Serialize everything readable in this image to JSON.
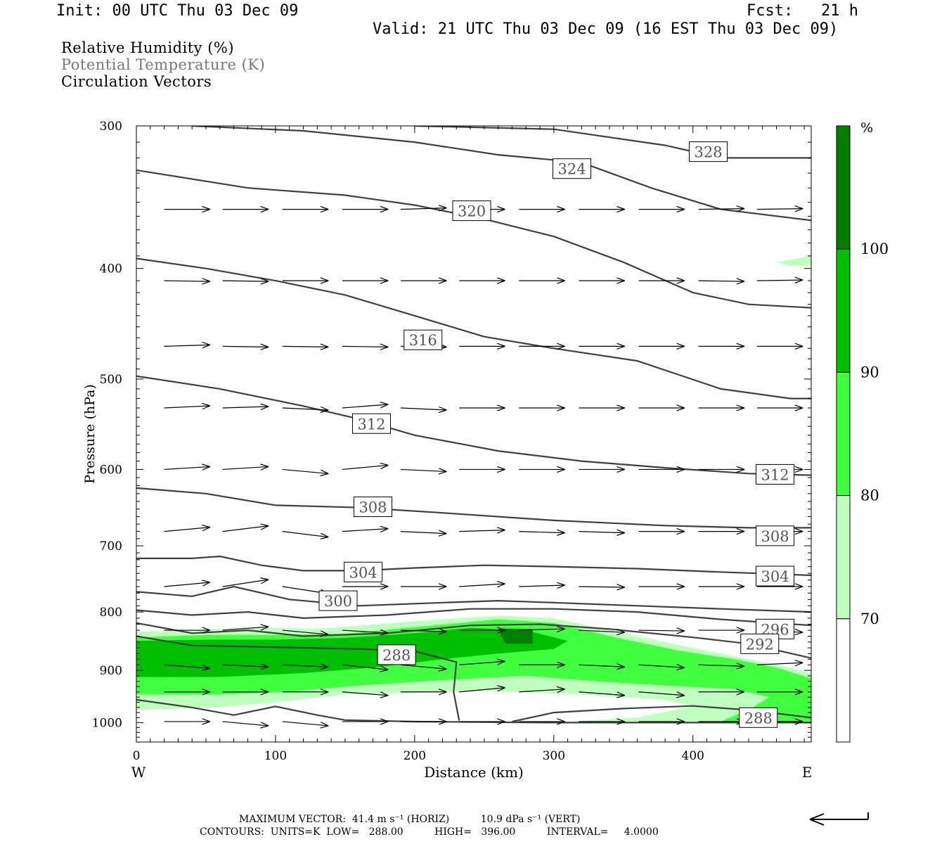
{
  "header": {
    "init": "Init: 00 UTC Thu 03 Dec 09",
    "fcst": "Fcst:   21 h",
    "valid": "Valid: 21 UTC Thu 03 Dec 09 (16 EST Thu 03 Dec 09)"
  },
  "legend": {
    "rh": "Relative Humidity (%)",
    "theta": "Potential Temperature (K)",
    "vectors": "Circulation Vectors"
  },
  "footer": {
    "max_vector": "MAXIMUM VECTOR:  41.4 m s⁻¹ (HORIZ)          10.9 dPa s⁻¹ (VERT)",
    "contours": "CONTOURS:  UNITS=K  LOW=   288.00          HIGH=   396.00          INTERVAL=     4.0000"
  },
  "colors": {
    "rh_70_80": "#bfffbf",
    "rh_80_90": "#3fff3f",
    "rh_90_100": "#00bf00",
    "rh_100": "#007f00",
    "contour": "#404040"
  },
  "chart_data": {
    "type": "cross-section",
    "xlabel": "Distance (km)",
    "ylabel": "Pressure (hPa)",
    "xlim": [
      0,
      485
    ],
    "ylim": [
      1040,
      300
    ],
    "y_scale": "log",
    "x_ticks": [
      0,
      100,
      200,
      300,
      400
    ],
    "x_tick_labels": [
      "0",
      "100",
      "200",
      "300",
      "400"
    ],
    "y_ticks": [
      300,
      400,
      500,
      600,
      700,
      800,
      900,
      1000
    ],
    "y_tick_labels": [
      "300",
      "400",
      "500",
      "600",
      "700",
      "800",
      "900",
      "1000"
    ],
    "side_left": "W",
    "side_right": "E",
    "colorbar": {
      "unit": "%",
      "labels": [
        "100",
        "90",
        "80",
        "70"
      ],
      "bins": [
        [
          70,
          80
        ],
        [
          80,
          90
        ],
        [
          90,
          100
        ],
        [
          100,
          110
        ]
      ]
    },
    "rh_fill_70": [
      [
        0,
        832
      ],
      [
        40,
        830
      ],
      [
        80,
        825
      ],
      [
        130,
        828
      ],
      [
        200,
        815
      ],
      [
        260,
        806
      ],
      [
        300,
        810
      ],
      [
        350,
        835
      ],
      [
        400,
        860
      ],
      [
        440,
        880
      ],
      [
        470,
        895
      ],
      [
        485,
        905
      ],
      [
        485,
        1000
      ],
      [
        440,
        1000
      ],
      [
        360,
        1000
      ],
      [
        300,
        1000
      ],
      [
        360,
        990
      ],
      [
        400,
        968
      ],
      [
        380,
        955
      ],
      [
        320,
        945
      ],
      [
        250,
        938
      ],
      [
        150,
        945
      ],
      [
        100,
        960
      ],
      [
        60,
        970
      ],
      [
        0,
        975
      ]
    ],
    "rh_fill_80": [
      [
        0,
        842
      ],
      [
        50,
        838
      ],
      [
        100,
        838
      ],
      [
        150,
        836
      ],
      [
        200,
        825
      ],
      [
        260,
        812
      ],
      [
        300,
        818
      ],
      [
        350,
        845
      ],
      [
        390,
        865
      ],
      [
        430,
        880
      ],
      [
        460,
        895
      ],
      [
        485,
        915
      ],
      [
        485,
        998
      ],
      [
        440,
        998
      ],
      [
        420,
        998
      ],
      [
        440,
        975
      ],
      [
        455,
        950
      ],
      [
        430,
        935
      ],
      [
        380,
        928
      ],
      [
        330,
        920
      ],
      [
        280,
        910
      ],
      [
        220,
        918
      ],
      [
        160,
        928
      ],
      [
        110,
        940
      ],
      [
        60,
        945
      ],
      [
        0,
        945
      ]
    ],
    "rh_fill_90": [
      [
        0,
        848
      ],
      [
        50,
        846
      ],
      [
        100,
        846
      ],
      [
        150,
        843
      ],
      [
        200,
        835
      ],
      [
        240,
        826
      ],
      [
        280,
        830
      ],
      [
        310,
        848
      ],
      [
        300,
        862
      ],
      [
        260,
        870
      ],
      [
        220,
        880
      ],
      [
        170,
        895
      ],
      [
        120,
        905
      ],
      [
        60,
        912
      ],
      [
        0,
        912
      ]
    ],
    "rh_fill_100": [
      [
        260,
        827
      ],
      [
        285,
        828
      ],
      [
        285,
        853
      ],
      [
        265,
        853
      ]
    ],
    "rh_fill_80_upper": [
      [
        460,
        395
      ],
      [
        485,
        390
      ],
      [
        485,
        398
      ],
      [
        470,
        398
      ]
    ],
    "theta_contours": [
      {
        "value": 288,
        "points": [
          [
            0,
            840
          ],
          [
            40,
            856
          ],
          [
            80,
            858
          ],
          [
            120,
            860
          ],
          [
            160,
            862
          ],
          [
            200,
            866
          ],
          [
            230,
            885
          ],
          [
            228,
            940
          ],
          [
            232,
            996
          ]
        ],
        "label_at": [
          187,
          872
        ]
      },
      {
        "value": 288,
        "points": [
          [
            270,
            998
          ],
          [
            300,
            980
          ],
          [
            350,
            972
          ],
          [
            400,
            967
          ],
          [
            440,
            975
          ],
          [
            485,
            990
          ]
        ],
        "label_at": [
          447,
          990
        ]
      },
      {
        "value": 292,
        "points": [
          [
            0,
            955
          ],
          [
            40,
            970
          ],
          [
            70,
            985
          ],
          [
            100,
            968
          ],
          [
            130,
            985
          ],
          [
            150,
            995
          ],
          [
            200,
            998
          ],
          [
            300,
            1000
          ],
          [
            400,
            1000
          ],
          [
            485,
            1000
          ]
        ],
        "label_at": [
          null,
          null
        ]
      },
      {
        "value": 292,
        "points": [
          [
            0,
            818
          ],
          [
            40,
            835
          ],
          [
            80,
            830
          ],
          [
            120,
            840
          ],
          [
            180,
            835
          ],
          [
            240,
            822
          ],
          [
            290,
            820
          ],
          [
            340,
            828
          ],
          [
            400,
            842
          ],
          [
            440,
            853
          ],
          [
            485,
            878
          ]
        ],
        "label_at": [
          448,
          853
        ]
      },
      {
        "value": 296,
        "points": [
          [
            0,
            797
          ],
          [
            40,
            805
          ],
          [
            80,
            800
          ],
          [
            120,
            810
          ],
          [
            180,
            805
          ],
          [
            240,
            795
          ],
          [
            300,
            795
          ],
          [
            360,
            800
          ],
          [
            420,
            812
          ],
          [
            485,
            822
          ]
        ],
        "label_at": [
          450,
          810
        ]
      },
      {
        "value": 300,
        "points": [
          [
            0,
            768
          ],
          [
            40,
            775
          ],
          [
            70,
            760
          ],
          [
            110,
            780
          ],
          [
            160,
            790
          ],
          [
            220,
            785
          ],
          [
            260,
            782
          ],
          [
            300,
            785
          ],
          [
            360,
            790
          ],
          [
            420,
            795
          ],
          [
            485,
            800
          ]
        ],
        "label_at": [
          145,
          782
        ]
      },
      {
        "value": 304,
        "points": [
          [
            0,
            718
          ],
          [
            40,
            718
          ],
          [
            60,
            715
          ],
          [
            90,
            728
          ],
          [
            120,
            736
          ],
          [
            160,
            736
          ],
          [
            200,
            732
          ],
          [
            250,
            728
          ],
          [
            300,
            730
          ],
          [
            360,
            733
          ],
          [
            420,
            738
          ],
          [
            485,
            743
          ]
        ],
        "label_at": [
          163,
          738
        ]
      },
      {
        "value": 308,
        "points": [
          [
            0,
            623
          ],
          [
            50,
            630
          ],
          [
            100,
            645
          ],
          [
            160,
            648
          ],
          [
            220,
            655
          ],
          [
            300,
            665
          ],
          [
            380,
            672
          ],
          [
            440,
            675
          ],
          [
            485,
            675
          ]
        ],
        "label_at": [
          170,
          647
        ]
      },
      {
        "value": 312,
        "points": [
          [
            0,
            497
          ],
          [
            60,
            510
          ],
          [
            120,
            528
          ],
          [
            160,
            542
          ],
          [
            200,
            560
          ],
          [
            260,
            578
          ],
          [
            320,
            590
          ],
          [
            380,
            598
          ],
          [
            440,
            605
          ],
          [
            485,
            607
          ]
        ],
        "label_at": [
          169,
          547
        ]
      },
      {
        "value": 316,
        "points": [
          [
            0,
            392
          ],
          [
            50,
            400
          ],
          [
            100,
            410
          ],
          [
            150,
            422
          ],
          [
            200,
            440
          ],
          [
            250,
            459
          ],
          [
            300,
            470
          ],
          [
            360,
            482
          ],
          [
            420,
            510
          ],
          [
            470,
            520
          ],
          [
            485,
            520
          ]
        ],
        "label_at": [
          206,
          462
        ]
      },
      {
        "value": 320,
        "points": [
          [
            0,
            328
          ],
          [
            80,
            340
          ],
          [
            150,
            345
          ],
          [
            200,
            352
          ],
          [
            250,
            362
          ],
          [
            300,
            375
          ],
          [
            350,
            395
          ],
          [
            400,
            420
          ],
          [
            440,
            430
          ],
          [
            485,
            433
          ]
        ],
        "label_at": [
          241,
          356
        ]
      },
      {
        "value": 324,
        "points": [
          [
            40,
            300
          ],
          [
            120,
            303
          ],
          [
            200,
            310
          ],
          [
            260,
            318
          ],
          [
            320,
            323
          ],
          [
            370,
            340
          ],
          [
            420,
            355
          ],
          [
            485,
            363
          ]
        ],
        "label_at": [
          313,
          327
        ]
      },
      {
        "value": 328,
        "points": [
          [
            200,
            300
          ],
          [
            300,
            302
          ],
          [
            380,
            312
          ],
          [
            420,
            320
          ],
          [
            485,
            320
          ]
        ],
        "label_at": [
          411,
          316
        ]
      }
    ],
    "theta_label_boxes": [
      {
        "text": "328",
        "x": 411,
        "p": 316
      },
      {
        "text": "324",
        "x": 313,
        "p": 327
      },
      {
        "text": "320",
        "x": 241,
        "p": 356
      },
      {
        "text": "316",
        "x": 206,
        "p": 462
      },
      {
        "text": "312",
        "x": 169,
        "p": 547
      },
      {
        "text": "312",
        "x": 459,
        "p": 606
      },
      {
        "text": "308",
        "x": 170,
        "p": 647
      },
      {
        "text": "308",
        "x": 459,
        "p": 686
      },
      {
        "text": "304",
        "x": 163,
        "p": 738
      },
      {
        "text": "304",
        "x": 459,
        "p": 744
      },
      {
        "text": "300",
        "x": 145,
        "p": 782
      },
      {
        "text": "296",
        "x": 459,
        "p": 828
      },
      {
        "text": "292",
        "x": 448,
        "p": 853
      },
      {
        "text": "288",
        "x": 187,
        "p": 872
      },
      {
        "text": "288",
        "x": 447,
        "p": 990
      }
    ],
    "vector_levels_hPa": [
      355,
      410,
      468,
      530,
      600,
      680,
      760,
      830,
      890,
      940,
      998
    ],
    "vector_x_km": [
      20,
      62,
      105,
      148,
      190,
      232,
      275,
      318,
      361,
      404,
      446
    ],
    "vector_u_km": 33,
    "vector_dp": [
      [
        0,
        0,
        0,
        0,
        -2,
        0,
        0,
        0,
        0,
        -1,
        -1
      ],
      [
        1,
        1,
        0,
        0,
        0,
        0,
        0,
        0,
        0,
        1,
        -1
      ],
      [
        -2,
        1,
        1,
        1,
        1,
        0,
        0,
        0,
        0,
        0,
        0
      ],
      [
        -3,
        -2,
        3,
        -5,
        3,
        0,
        0,
        0,
        0,
        0,
        0
      ],
      [
        -4,
        -4,
        6,
        -6,
        3,
        0,
        0,
        0,
        0,
        0,
        0
      ],
      [
        -6,
        -8,
        8,
        -4,
        3,
        -2,
        2,
        2,
        0,
        0,
        0
      ],
      [
        -6,
        -10,
        10,
        0,
        0,
        -4,
        -2,
        1,
        0,
        0,
        0
      ],
      [
        0,
        -5,
        6,
        4,
        2,
        0,
        -2,
        3,
        1,
        0,
        3
      ],
      [
        5,
        3,
        3,
        7,
        6,
        -5,
        0,
        3,
        4,
        2,
        -3
      ],
      [
        0,
        0,
        0,
        5,
        0,
        -6,
        -4,
        5,
        5,
        0,
        0
      ],
      [
        0,
        6,
        6,
        0,
        0,
        0,
        0,
        0,
        0,
        0,
        0
      ]
    ],
    "reference_vector": "horizontal 41.4 m/s"
  }
}
